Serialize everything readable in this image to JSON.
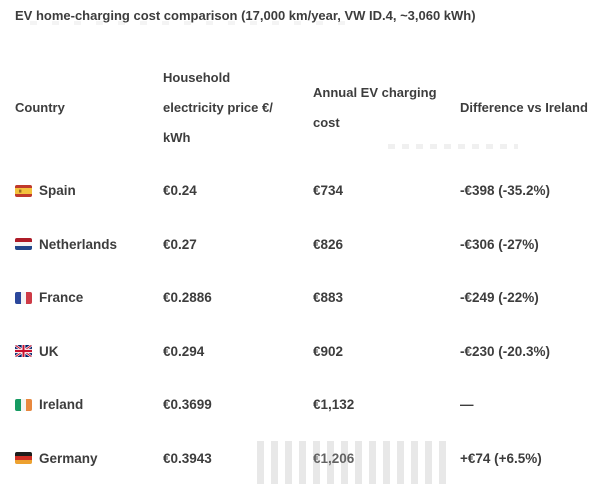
{
  "title": "EV home-charging cost comparison (17,000 km/year, VW ID.4, ~3,060 kWh)",
  "colors": {
    "text": "#3d3d3d",
    "background": "#ffffff",
    "faded_value_text": "#636363"
  },
  "table": {
    "headers": [
      {
        "id": "country",
        "label": "Country",
        "lines": [
          "Country"
        ]
      },
      {
        "id": "price",
        "label": "Household electricity price €/kWh",
        "lines": [
          "Household",
          "electricity price €/",
          "kWh"
        ]
      },
      {
        "id": "annual-cost",
        "label": "Annual EV charging cost",
        "lines": [
          "Annual EV charging",
          "cost"
        ]
      },
      {
        "id": "difference",
        "label": "Difference vs Ireland",
        "lines": [
          "Difference vs Ireland"
        ]
      }
    ],
    "rows": [
      {
        "country": "Spain",
        "flag_icon": "spain-flag",
        "price": "€0.24",
        "annual_cost": "€734",
        "difference": "-€398 (-35.2%)",
        "annual_cost_faded": false
      },
      {
        "country": "Netherlands",
        "flag_icon": "netherlands-flag",
        "price": "€0.27",
        "annual_cost": "€826",
        "difference": "-€306 (-27%)",
        "annual_cost_faded": false
      },
      {
        "country": "France",
        "flag_icon": "france-flag",
        "price": "€0.2886",
        "annual_cost": "€883",
        "difference": "-€249 (-22%)",
        "annual_cost_faded": false
      },
      {
        "country": "UK",
        "flag_icon": "uk-flag",
        "price": "€0.294",
        "annual_cost": "€902",
        "difference": "-€230 (-20.3%)",
        "annual_cost_faded": false
      },
      {
        "country": "Ireland",
        "flag_icon": "ireland-flag",
        "price": "€0.3699",
        "annual_cost": "€1,132",
        "difference": "—",
        "annual_cost_faded": false
      },
      {
        "country": "Germany",
        "flag_icon": "germany-flag",
        "price": "€0.3943",
        "annual_cost": "€1,206",
        "difference": "+€74 (+6.5%)",
        "annual_cost_faded": true
      }
    ]
  },
  "chart_data": {
    "type": "table",
    "title": "EV home-charging cost comparison (17,000 km/year, VW ID.4, ~3,060 kWh)",
    "columns": [
      "Country",
      "Household electricity price €/kWh",
      "Annual EV charging cost",
      "Difference vs Ireland"
    ],
    "rows": [
      {
        "country": "Spain",
        "electricity_price_eur_per_kwh": 0.24,
        "annual_ev_charging_cost_eur": 734,
        "difference_vs_ireland_eur": -398,
        "difference_vs_ireland_pct": -35.2
      },
      {
        "country": "Netherlands",
        "electricity_price_eur_per_kwh": 0.27,
        "annual_ev_charging_cost_eur": 826,
        "difference_vs_ireland_eur": -306,
        "difference_vs_ireland_pct": -27
      },
      {
        "country": "France",
        "electricity_price_eur_per_kwh": 0.2886,
        "annual_ev_charging_cost_eur": 883,
        "difference_vs_ireland_eur": -249,
        "difference_vs_ireland_pct": -22
      },
      {
        "country": "UK",
        "electricity_price_eur_per_kwh": 0.294,
        "annual_ev_charging_cost_eur": 902,
        "difference_vs_ireland_eur": -230,
        "difference_vs_ireland_pct": -20.3
      },
      {
        "country": "Ireland",
        "electricity_price_eur_per_kwh": 0.3699,
        "annual_ev_charging_cost_eur": 1132,
        "difference_vs_ireland_eur": null,
        "difference_vs_ireland_pct": null
      },
      {
        "country": "Germany",
        "electricity_price_eur_per_kwh": 0.3943,
        "annual_ev_charging_cost_eur": 1206,
        "difference_vs_ireland_eur": 74,
        "difference_vs_ireland_pct": 6.5
      }
    ],
    "assumptions": "17,000 km/year, VW ID.4, ~3,060 kWh",
    "baseline_country": "Ireland"
  }
}
